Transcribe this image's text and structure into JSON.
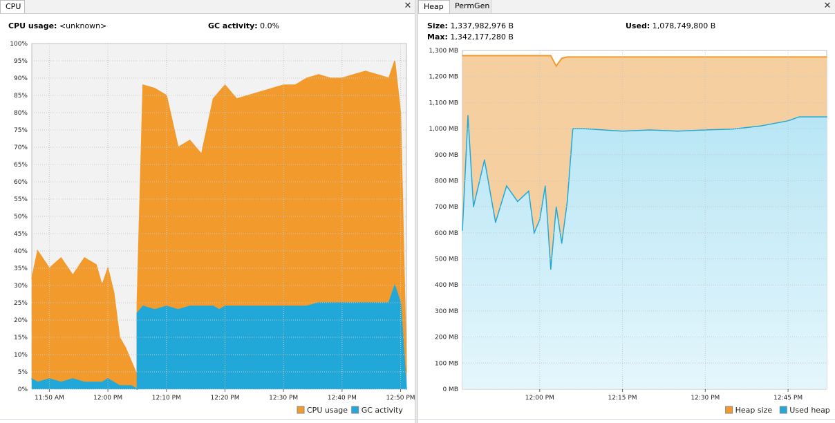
{
  "cpu_panel": {
    "tab_label": "CPU",
    "cpu_usage_label": "CPU usage:",
    "cpu_usage_value": "<unknown>",
    "gc_activity_label": "GC activity:",
    "gc_activity_value": "0.0%"
  },
  "heap_panel": {
    "tabs": [
      "Heap",
      "PermGen"
    ],
    "size_label": "Size:",
    "size_value": "1,337,982,976 B",
    "used_label": "Used:",
    "used_value": "1,078,749,800 B",
    "max_label": "Max:",
    "max_value": "1,342,177,280 B"
  },
  "colors": {
    "cpu_usage": "#f29b2c",
    "gc_activity": "#22a8d8",
    "heap_size_fill": "#f5cfa0",
    "heap_size_line": "#f29b2c",
    "used_heap_fill": "#b8e6f5",
    "used_heap_line": "#22a8d8",
    "plot_bg": "#f2f2f2"
  },
  "chart_data": [
    {
      "type": "area",
      "ylim": [
        0,
        100
      ],
      "xlim": [
        "11:47 AM",
        "12:51 PM"
      ],
      "grid": true,
      "legend_position": "bottom-right",
      "y_ticks": [
        "0%",
        "5%",
        "10%",
        "15%",
        "20%",
        "25%",
        "30%",
        "35%",
        "40%",
        "45%",
        "50%",
        "55%",
        "60%",
        "65%",
        "70%",
        "75%",
        "80%",
        "85%",
        "90%",
        "95%",
        "100%"
      ],
      "x_ticks": [
        "11:50 AM",
        "12:00 PM",
        "12:10 PM",
        "12:20 PM",
        "12:30 PM",
        "12:40 PM",
        "12:50 PM"
      ],
      "series": [
        {
          "name": "CPU usage",
          "x": [
            "11:47 AM",
            "11:48 AM",
            "11:50 AM",
            "11:52 AM",
            "11:54 AM",
            "11:56 AM",
            "11:58 AM",
            "11:59 AM",
            "12:00 PM",
            "12:01 PM",
            "12:02 PM",
            "12:03 PM",
            "12:04 PM",
            "12:05 PM",
            "12:05 PM",
            "12:06 PM",
            "12:08 PM",
            "12:10 PM",
            "12:12 PM",
            "12:14 PM",
            "12:16 PM",
            "12:18 PM",
            "12:19 PM",
            "12:20 PM",
            "12:22 PM",
            "12:24 PM",
            "12:26 PM",
            "12:28 PM",
            "12:30 PM",
            "12:32 PM",
            "12:34 PM",
            "12:36 PM",
            "12:38 PM",
            "12:40 PM",
            "12:42 PM",
            "12:44 PM",
            "12:46 PM",
            "12:48 PM",
            "12:49 PM",
            "12:50 PM",
            "12:51 PM"
          ],
          "values": [
            32,
            40,
            35,
            38,
            33,
            38,
            36,
            30,
            35,
            28,
            15,
            12,
            8,
            4,
            25,
            88,
            87,
            85,
            70,
            72,
            68,
            84,
            86,
            88,
            84,
            85,
            86,
            87,
            88,
            88,
            90,
            91,
            90,
            90,
            91,
            92,
            91,
            90,
            95,
            80,
            5
          ]
        },
        {
          "name": "GC activity",
          "x": [
            "11:47 AM",
            "11:48 AM",
            "11:50 AM",
            "11:52 AM",
            "11:54 AM",
            "11:56 AM",
            "11:58 AM",
            "11:59 AM",
            "12:00 PM",
            "12:01 PM",
            "12:02 PM",
            "12:03 PM",
            "12:04 PM",
            "12:05 PM",
            "12:05 PM",
            "12:06 PM",
            "12:08 PM",
            "12:10 PM",
            "12:12 PM",
            "12:14 PM",
            "12:16 PM",
            "12:18 PM",
            "12:19 PM",
            "12:20 PM",
            "12:22 PM",
            "12:24 PM",
            "12:26 PM",
            "12:28 PM",
            "12:30 PM",
            "12:32 PM",
            "12:34 PM",
            "12:36 PM",
            "12:38 PM",
            "12:40 PM",
            "12:42 PM",
            "12:44 PM",
            "12:46 PM",
            "12:48 PM",
            "12:49 PM",
            "12:50 PM",
            "12:51 PM"
          ],
          "values": [
            3,
            2,
            3,
            2,
            3,
            2,
            2,
            2,
            3,
            2,
            1,
            1,
            1,
            0,
            22,
            24,
            23,
            24,
            23,
            24,
            24,
            24,
            23,
            24,
            24,
            24,
            24,
            24,
            24,
            24,
            24,
            25,
            25,
            25,
            25,
            25,
            25,
            25,
            30,
            25,
            0
          ]
        }
      ]
    },
    {
      "type": "area",
      "ylim": [
        0,
        1300
      ],
      "xlim": [
        "11:46 AM",
        "12:52 PM"
      ],
      "grid": true,
      "legend_position": "bottom-right",
      "y_ticks": [
        "0 MB",
        "100 MB",
        "200 MB",
        "300 MB",
        "400 MB",
        "500 MB",
        "600 MB",
        "700 MB",
        "800 MB",
        "900 MB",
        "1,000 MB",
        "1,100 MB",
        "1,200 MB",
        "1,300 MB"
      ],
      "x_ticks": [
        "12:00 PM",
        "12:15 PM",
        "12:30 PM",
        "12:45 PM"
      ],
      "series": [
        {
          "name": "Heap size",
          "x": [
            "11:46 AM",
            "11:55 AM",
            "12:00 PM",
            "12:02 PM",
            "12:03 PM",
            "12:04 PM",
            "12:05 PM",
            "12:06 PM",
            "12:52 PM"
          ],
          "values": [
            1280,
            1280,
            1280,
            1280,
            1240,
            1270,
            1275,
            1275,
            1275
          ]
        },
        {
          "name": "Used heap",
          "x": [
            "11:46 AM",
            "11:47 AM",
            "11:48 AM",
            "11:50 AM",
            "11:52 AM",
            "11:54 AM",
            "11:56 AM",
            "11:58 AM",
            "11:59 AM",
            "12:00 PM",
            "12:01 PM",
            "12:02 PM",
            "12:03 PM",
            "12:04 PM",
            "12:05 PM",
            "12:06 PM",
            "12:08 PM",
            "12:15 PM",
            "12:20 PM",
            "12:25 PM",
            "12:30 PM",
            "12:35 PM",
            "12:40 PM",
            "12:45 PM",
            "12:47 PM",
            "12:52 PM"
          ],
          "values": [
            610,
            1050,
            700,
            880,
            640,
            780,
            720,
            760,
            600,
            650,
            780,
            460,
            700,
            560,
            720,
            1000,
            1000,
            990,
            995,
            990,
            995,
            998,
            1010,
            1030,
            1045,
            1045
          ]
        }
      ]
    }
  ]
}
